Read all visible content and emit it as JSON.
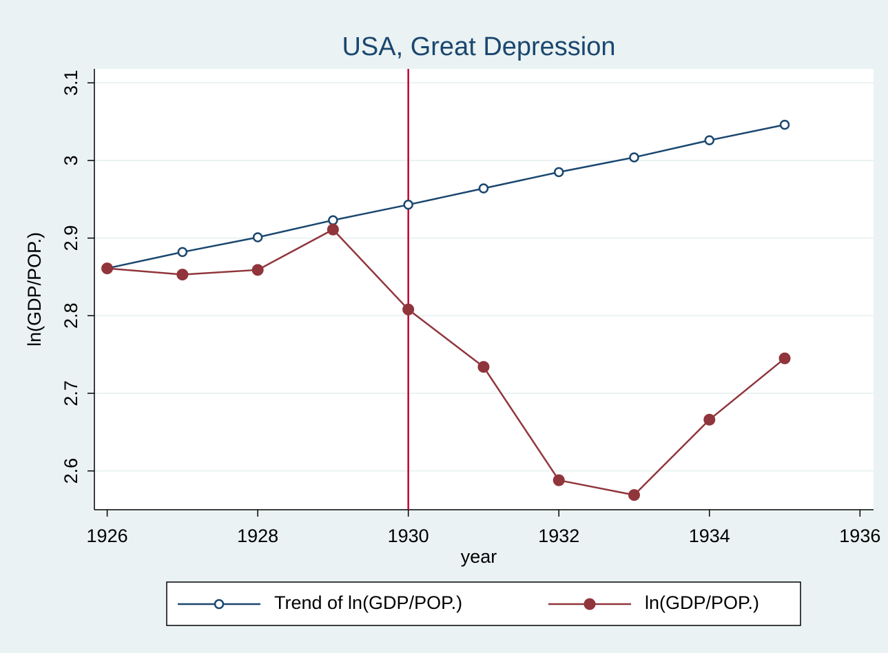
{
  "chart_data": {
    "type": "line",
    "title": "USA, Great Depression",
    "x_label": "year",
    "y_label": "ln(GDP/POP.)",
    "x": [
      1926,
      1927,
      1928,
      1929,
      1930,
      1931,
      1932,
      1933,
      1934,
      1935
    ],
    "series": [
      {
        "name": "Trend of ln(GDP/POP.)",
        "color": "#1a476f",
        "marker": "hollow-circle",
        "values": [
          2.861,
          2.882,
          2.901,
          2.923,
          2.943,
          2.964,
          2.985,
          3.004,
          3.026,
          3.046
        ]
      },
      {
        "name": "ln(GDP/POP.)",
        "color": "#90353b",
        "marker": "filled-circle",
        "values": [
          2.861,
          2.853,
          2.859,
          2.911,
          2.808,
          2.734,
          2.588,
          2.569,
          2.666,
          2.745
        ]
      }
    ],
    "xlim": [
      1925.83,
      1936.18
    ],
    "xticks": [
      1926,
      1928,
      1930,
      1932,
      1934,
      1936
    ],
    "ylim": [
      2.55,
      3.118
    ],
    "yticks": [
      2.6,
      2.7,
      2.8,
      2.9,
      3,
      3.1
    ],
    "xline": {
      "value": 1930,
      "color": "#c10534"
    },
    "grid": true,
    "legend": "bottom"
  }
}
